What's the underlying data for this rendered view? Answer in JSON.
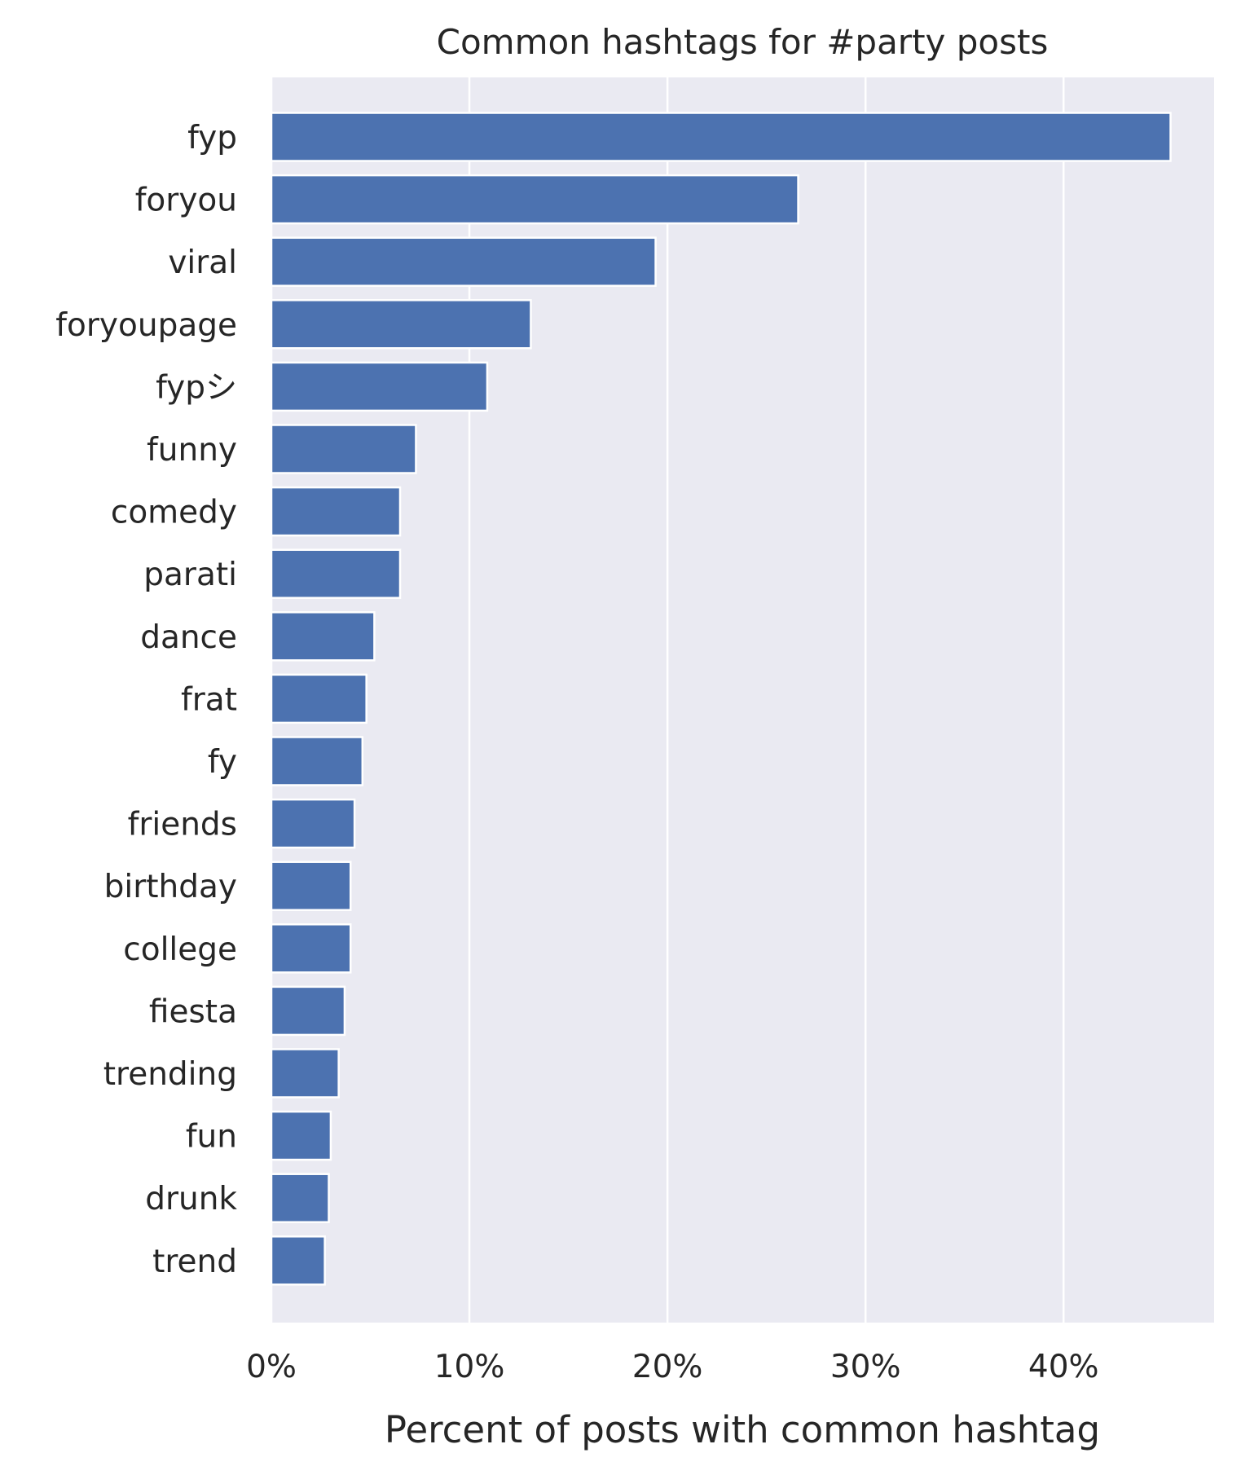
{
  "chart_data": {
    "type": "bar",
    "orientation": "horizontal",
    "title": "Common hashtags for #party posts",
    "xlabel": "Percent of posts with common hashtag",
    "ylabel": "",
    "categories": [
      "fyp",
      "foryou",
      "viral",
      "foryoupage",
      "fypシ",
      "funny",
      "comedy",
      "parati",
      "dance",
      "frat",
      "fy",
      "friends",
      "birthday",
      "college",
      "fiesta",
      "trending",
      "fun",
      "drunk",
      "trend"
    ],
    "values": [
      45.4,
      26.6,
      19.4,
      13.1,
      10.9,
      7.3,
      6.5,
      6.5,
      5.2,
      4.8,
      4.6,
      4.2,
      4.0,
      4.0,
      3.7,
      3.4,
      3.0,
      2.9,
      2.7
    ],
    "xlim": [
      0,
      47.6
    ],
    "xticks": [
      0,
      10,
      20,
      30,
      40
    ],
    "xtick_labels": [
      "0%",
      "10%",
      "20%",
      "30%",
      "40%"
    ],
    "grid": true,
    "bar_color": "#4c72b0",
    "background_color": "#eaeaf2",
    "grid_color": "#ffffff"
  }
}
